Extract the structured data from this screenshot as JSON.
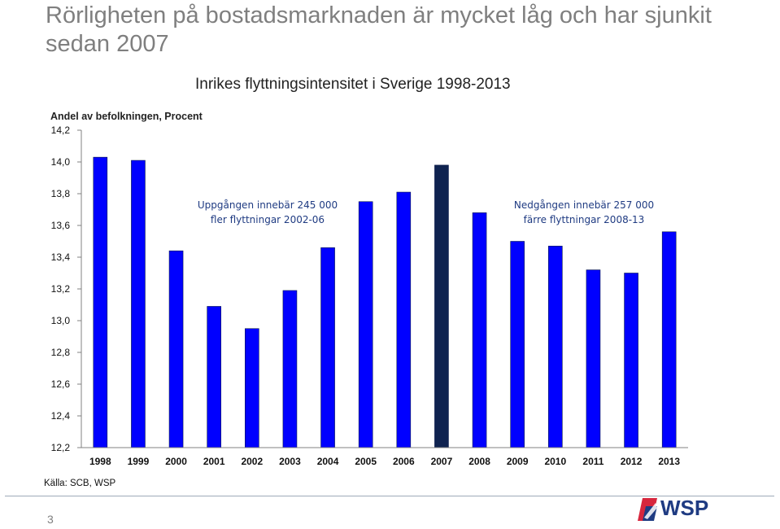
{
  "slide": {
    "title": "Rörligheten på bostadsmarknaden är mycket låg och har sjunkit sedan 2007",
    "source": "Källa: SCB, WSP",
    "page_number": "3",
    "logo_text": "WSP"
  },
  "colors": {
    "bar_default": "#0000ff",
    "bar_highlight": "#0f2350",
    "title_gray": "#7f7f7f",
    "annotation": "#1f3b82"
  },
  "chart_data": {
    "type": "bar",
    "title": "Inrikes flyttningsintensitet i Sverige 1998-2013",
    "ylabel": "Andel av befolkningen, Procent",
    "xlabel": "",
    "categories": [
      "1998",
      "1999",
      "2000",
      "2001",
      "2002",
      "2003",
      "2004",
      "2005",
      "2006",
      "2007",
      "2008",
      "2009",
      "2010",
      "2011",
      "2012",
      "2013"
    ],
    "values": [
      14.03,
      14.01,
      13.44,
      13.09,
      12.95,
      13.19,
      13.46,
      13.75,
      13.81,
      13.98,
      13.68,
      13.5,
      13.47,
      13.32,
      13.3,
      13.56
    ],
    "highlight_category": "2007",
    "ylim": [
      12.2,
      14.2
    ],
    "yticks": [
      "12,2",
      "12,4",
      "12,6",
      "12,8",
      "13,0",
      "13,2",
      "13,4",
      "13,6",
      "13,8",
      "14,0",
      "14,2"
    ],
    "ytick_values": [
      12.2,
      12.4,
      12.6,
      12.8,
      13.0,
      13.2,
      13.4,
      13.6,
      13.8,
      14.0,
      14.2
    ],
    "grid": false,
    "legend": "none",
    "annotations": [
      {
        "line1": "Uppgången innebär 245 000",
        "line2": "fler flyttningar 2002-06"
      },
      {
        "line1": "Nedgången innebär 257 000",
        "line2": "färre flyttningar 2008-13"
      }
    ]
  }
}
